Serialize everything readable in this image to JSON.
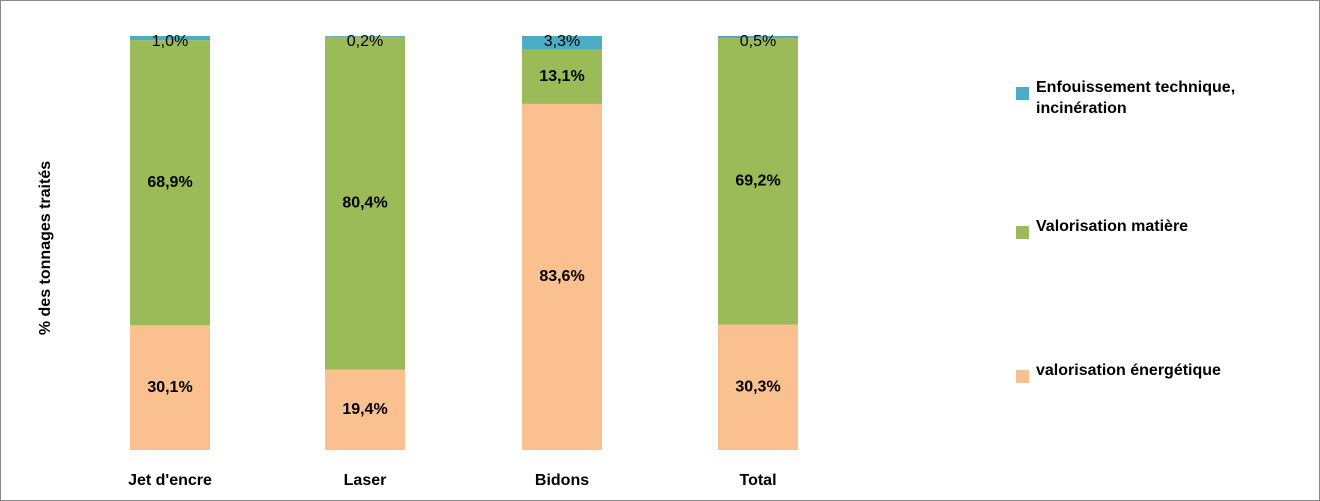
{
  "chart_data": {
    "type": "stacked_bar",
    "y_label": "% des tonnages traités",
    "categories": [
      "Jet d'encre",
      "Laser",
      "Bidons",
      "Total"
    ],
    "series": [
      {
        "name": "valorisation énergétique",
        "color": "#fac090",
        "values": [
          30.1,
          19.4,
          83.6,
          30.3
        ],
        "value_labels": [
          "30,1%",
          "19,4%",
          "83,6%",
          "30,3%"
        ]
      },
      {
        "name": "Valorisation matière",
        "color": "#9bbb59",
        "values": [
          68.9,
          80.4,
          13.1,
          69.2
        ],
        "value_labels": [
          "68,9%",
          "80,4%",
          "13,1%",
          "69,2%"
        ]
      },
      {
        "name": "Enfouissement technique, incinération",
        "color": "#4bacc6",
        "values": [
          1.0,
          0.2,
          3.3,
          0.5
        ],
        "value_labels": [
          "1,0%",
          "0,2%",
          "3,3%",
          "0,5%"
        ]
      }
    ]
  }
}
